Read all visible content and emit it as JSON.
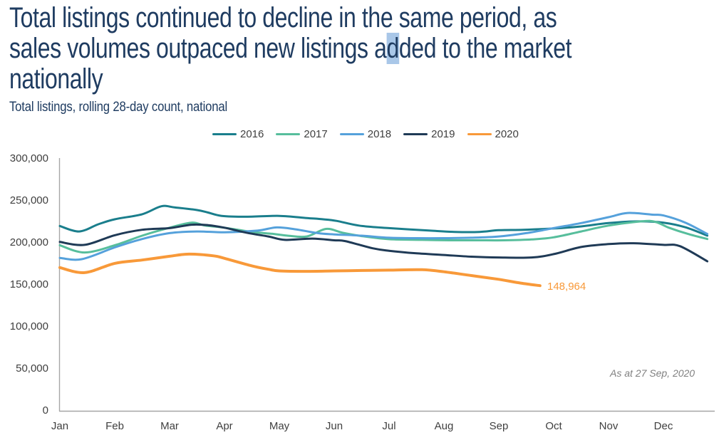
{
  "header": {
    "title": {
      "line1": "Total listings continued to decline in the same period, as",
      "line2_pre": "sales volumes outpaced new listings a",
      "line2_highlight": "d",
      "line2_post": "ded to the market",
      "line3": "nationally",
      "full_text": "Total listings continued to decline in the same period, as sales volumes outpaced new listings added to the market nationally"
    },
    "subtitle": "Total listings, rolling 28-day count, national"
  },
  "colors": {
    "title_navy": "#1F3C61",
    "selection_highlight": "#A9C7E8",
    "axis_text": "#3F3F3F",
    "axis_line": "#A6A6A6",
    "annotation_gray": "#7F7F7F"
  },
  "chart_data": {
    "type": "line",
    "title": "Total listings, rolling 28-day count, national",
    "grid": "off",
    "legend_position": "top",
    "x_axis": {
      "unit": "month",
      "categories": [
        "Jan",
        "Feb",
        "Mar",
        "Apr",
        "May",
        "Jun",
        "Jul",
        "Aug",
        "Sep",
        "Oct",
        "Nov",
        "Dec"
      ]
    },
    "y_axis": {
      "min": 0,
      "max": 300000,
      "tick_interval": 50000,
      "tick_labels": [
        "300,000",
        "250,000",
        "200,000",
        "150,000",
        "100,000",
        "50,000",
        "0"
      ]
    },
    "series": [
      {
        "name": "2016",
        "color": "#1A7E8C",
        "stroke_width": 3,
        "points": [
          [
            0,
            220000
          ],
          [
            0.35,
            213500
          ],
          [
            0.7,
            222000
          ],
          [
            1,
            228000
          ],
          [
            1.5,
            234000
          ],
          [
            1.85,
            243500
          ],
          [
            2.1,
            242000
          ],
          [
            2.5,
            239000
          ],
          [
            2.7,
            236000
          ],
          [
            2.95,
            232000
          ],
          [
            3.4,
            231000
          ],
          [
            4,
            232000
          ],
          [
            4.5,
            229500
          ],
          [
            4.8,
            228000
          ],
          [
            5.05,
            226000
          ],
          [
            5.45,
            220500
          ],
          [
            6,
            217500
          ],
          [
            6.75,
            214500
          ],
          [
            7.2,
            213000
          ],
          [
            7.65,
            213000
          ],
          [
            8,
            215000
          ],
          [
            8.45,
            215500
          ],
          [
            9,
            217000
          ],
          [
            9.5,
            219500
          ],
          [
            10,
            223500
          ],
          [
            10.55,
            225500
          ],
          [
            11,
            224000
          ],
          [
            11.4,
            218500
          ],
          [
            11.8,
            208500
          ]
        ]
      },
      {
        "name": "2017",
        "color": "#57BE9C",
        "stroke_width": 3,
        "points": [
          [
            0,
            197000
          ],
          [
            0.45,
            188500
          ],
          [
            1,
            197000
          ],
          [
            1.5,
            208500
          ],
          [
            2,
            218000
          ],
          [
            2.4,
            224000
          ],
          [
            2.65,
            220500
          ],
          [
            3,
            218000
          ],
          [
            3.5,
            213000
          ],
          [
            3.9,
            210500
          ],
          [
            4.15,
            208500
          ],
          [
            4.5,
            207500
          ],
          [
            4.85,
            216500
          ],
          [
            5.15,
            212000
          ],
          [
            5.5,
            208000
          ],
          [
            5.8,
            205500
          ],
          [
            6.1,
            204000
          ],
          [
            6.6,
            203500
          ],
          [
            7.1,
            203000
          ],
          [
            7.6,
            203000
          ],
          [
            8.1,
            203000
          ],
          [
            8.6,
            204000
          ],
          [
            9,
            206500
          ],
          [
            9.5,
            213500
          ],
          [
            10,
            220500
          ],
          [
            10.6,
            225500
          ],
          [
            10.85,
            225000
          ],
          [
            11.1,
            218000
          ],
          [
            11.45,
            210500
          ],
          [
            11.8,
            204500
          ]
        ]
      },
      {
        "name": "2018",
        "color": "#55A1DB",
        "stroke_width": 3,
        "points": [
          [
            0,
            182000
          ],
          [
            0.4,
            180500
          ],
          [
            1,
            194500
          ],
          [
            1.5,
            204500
          ],
          [
            2,
            211500
          ],
          [
            2.5,
            213500
          ],
          [
            3,
            212500
          ],
          [
            3.6,
            214500
          ],
          [
            3.95,
            218300
          ],
          [
            4.3,
            216000
          ],
          [
            4.7,
            211500
          ],
          [
            5,
            210000
          ],
          [
            5.5,
            208500
          ],
          [
            6,
            206000
          ],
          [
            6.5,
            205500
          ],
          [
            7,
            205500
          ],
          [
            7.5,
            206000
          ],
          [
            8,
            207500
          ],
          [
            8.5,
            211500
          ],
          [
            9,
            217500
          ],
          [
            9.5,
            223500
          ],
          [
            10,
            230500
          ],
          [
            10.35,
            235500
          ],
          [
            10.8,
            233500
          ],
          [
            11,
            232500
          ],
          [
            11.4,
            224000
          ],
          [
            11.8,
            210500
          ]
        ]
      },
      {
        "name": "2019",
        "color": "#1F3A56",
        "stroke_width": 3,
        "points": [
          [
            0,
            201000
          ],
          [
            0.45,
            197500
          ],
          [
            1,
            209000
          ],
          [
            1.5,
            215500
          ],
          [
            2,
            217500
          ],
          [
            2.4,
            221500
          ],
          [
            2.7,
            221000
          ],
          [
            3,
            218000
          ],
          [
            3.4,
            212000
          ],
          [
            3.8,
            207500
          ],
          [
            4.1,
            203500
          ],
          [
            4.6,
            205000
          ],
          [
            5,
            203000
          ],
          [
            5.2,
            202000
          ],
          [
            5.7,
            193500
          ],
          [
            6,
            190500
          ],
          [
            6.5,
            187500
          ],
          [
            7,
            185500
          ],
          [
            7.5,
            183500
          ],
          [
            8,
            182500
          ],
          [
            8.6,
            182500
          ],
          [
            9,
            186500
          ],
          [
            9.5,
            195000
          ],
          [
            10,
            198500
          ],
          [
            10.45,
            199500
          ],
          [
            11,
            197500
          ],
          [
            11.3,
            196000
          ],
          [
            11.8,
            178000
          ]
        ]
      },
      {
        "name": "2020",
        "color": "#F89939",
        "stroke_width": 4,
        "points": [
          [
            0,
            170500
          ],
          [
            0.45,
            164500
          ],
          [
            1,
            175500
          ],
          [
            1.5,
            179500
          ],
          [
            2,
            184000
          ],
          [
            2.35,
            186500
          ],
          [
            2.8,
            184500
          ],
          [
            3,
            181500
          ],
          [
            3.5,
            172500
          ],
          [
            3.8,
            168500
          ],
          [
            4,
            166500
          ],
          [
            4.5,
            166000
          ],
          [
            5,
            166500
          ],
          [
            5.5,
            167000
          ],
          [
            6,
            167500
          ],
          [
            6.6,
            168000
          ],
          [
            7,
            165500
          ],
          [
            7.5,
            161000
          ],
          [
            8,
            156500
          ],
          [
            8.4,
            152000
          ],
          [
            8.75,
            148964
          ]
        ]
      }
    ],
    "annotations": [
      {
        "text": "148,964",
        "series": "2020",
        "color": "#F89939"
      },
      {
        "text": "As at 27 Sep, 2020",
        "style": "italic-gray"
      }
    ]
  }
}
